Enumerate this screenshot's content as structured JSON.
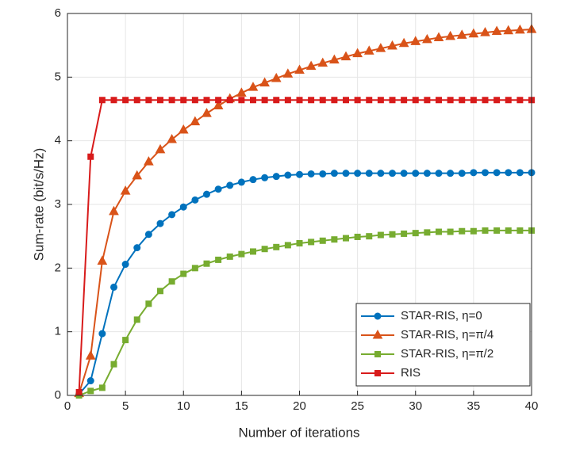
{
  "chart_data": {
    "type": "line",
    "xlabel": "Number of iterations",
    "ylabel": "Sum-rate (bit/s/Hz)",
    "x": [
      1,
      2,
      3,
      4,
      5,
      6,
      7,
      8,
      9,
      10,
      11,
      12,
      13,
      14,
      15,
      16,
      17,
      18,
      19,
      20,
      21,
      22,
      23,
      24,
      25,
      26,
      27,
      28,
      29,
      30,
      31,
      32,
      33,
      34,
      35,
      36,
      37,
      38,
      39,
      40
    ],
    "xlim": [
      0,
      40
    ],
    "xticks": [
      0,
      5,
      10,
      15,
      20,
      25,
      30,
      35,
      40
    ],
    "ylim": [
      0,
      6
    ],
    "yticks": [
      0,
      1,
      2,
      3,
      4,
      5,
      6
    ],
    "grid": true,
    "legend": "lower right",
    "series": [
      {
        "name": "STAR-RIS, η=0",
        "color": "#0072bd",
        "marker": "circle",
        "values": [
          0.02,
          0.23,
          0.97,
          1.7,
          2.06,
          2.32,
          2.53,
          2.7,
          2.84,
          2.96,
          3.07,
          3.16,
          3.24,
          3.3,
          3.35,
          3.39,
          3.42,
          3.44,
          3.46,
          3.47,
          3.48,
          3.48,
          3.49,
          3.49,
          3.49,
          3.49,
          3.49,
          3.49,
          3.49,
          3.49,
          3.49,
          3.49,
          3.49,
          3.49,
          3.5,
          3.5,
          3.5,
          3.5,
          3.5,
          3.5
        ]
      },
      {
        "name": "STAR-RIS, η=π/4",
        "color": "#d95319",
        "marker": "triangle",
        "values": [
          0.03,
          0.62,
          2.11,
          2.89,
          3.21,
          3.45,
          3.67,
          3.86,
          4.02,
          4.17,
          4.3,
          4.43,
          4.55,
          4.66,
          4.75,
          4.84,
          4.91,
          4.98,
          5.05,
          5.11,
          5.17,
          5.22,
          5.27,
          5.32,
          5.37,
          5.41,
          5.45,
          5.49,
          5.53,
          5.56,
          5.59,
          5.62,
          5.64,
          5.66,
          5.68,
          5.7,
          5.72,
          5.73,
          5.74,
          5.75
        ]
      },
      {
        "name": "STAR-RIS, η=π/2",
        "color": "#77ac30",
        "marker": "square",
        "values": [
          0.0,
          0.07,
          0.12,
          0.49,
          0.87,
          1.19,
          1.44,
          1.64,
          1.79,
          1.91,
          2.0,
          2.07,
          2.13,
          2.18,
          2.22,
          2.26,
          2.3,
          2.33,
          2.36,
          2.39,
          2.41,
          2.43,
          2.45,
          2.47,
          2.49,
          2.5,
          2.52,
          2.53,
          2.54,
          2.55,
          2.56,
          2.57,
          2.57,
          2.58,
          2.58,
          2.59,
          2.59,
          2.59,
          2.59,
          2.59
        ]
      },
      {
        "name": "RIS",
        "color": "#d81b1b",
        "marker": "square",
        "values": [
          0.05,
          3.75,
          4.64,
          4.64,
          4.64,
          4.64,
          4.64,
          4.64,
          4.64,
          4.64,
          4.64,
          4.64,
          4.64,
          4.64,
          4.64,
          4.64,
          4.64,
          4.64,
          4.64,
          4.64,
          4.64,
          4.64,
          4.64,
          4.64,
          4.64,
          4.64,
          4.64,
          4.64,
          4.64,
          4.64,
          4.64,
          4.64,
          4.64,
          4.64,
          4.64,
          4.64,
          4.64,
          4.64,
          4.64,
          4.64
        ]
      }
    ]
  }
}
